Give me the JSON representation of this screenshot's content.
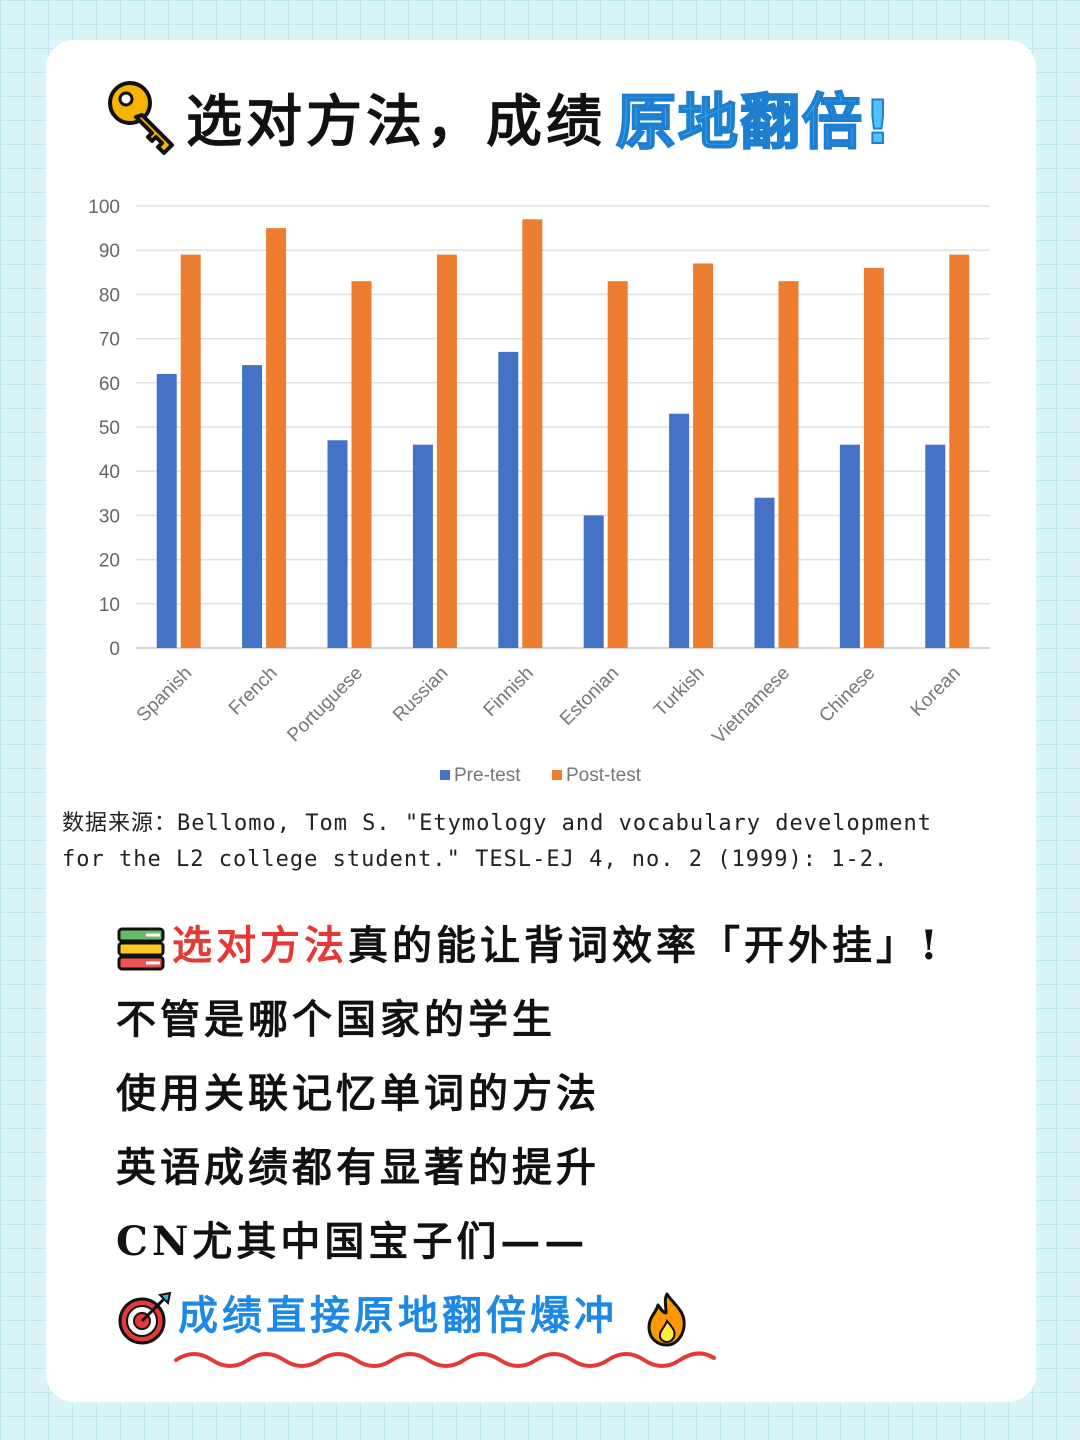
{
  "headline": {
    "text": "选对方法，成绩",
    "highlight": "原地翻倍!",
    "icon": "key-icon"
  },
  "chart_data": {
    "type": "bar",
    "categories": [
      "Spanish",
      "French",
      "Portuguese",
      "Russian",
      "Finnish",
      "Estonian",
      "Turkish",
      "Vietnamese",
      "Chinese",
      "Korean"
    ],
    "series": [
      {
        "name": "Pre-test",
        "color": "#4472c4",
        "values": [
          62,
          64,
          47,
          46,
          67,
          30,
          53,
          34,
          46,
          46
        ]
      },
      {
        "name": "Post-test",
        "color": "#ed7d31",
        "values": [
          89,
          95,
          83,
          89,
          97,
          83,
          87,
          83,
          86,
          89
        ]
      }
    ],
    "ylim": [
      0,
      100
    ],
    "yticks": [
      0,
      10,
      20,
      30,
      40,
      50,
      60,
      70,
      80,
      90,
      100
    ],
    "grid": true,
    "legend": "bottom"
  },
  "source": {
    "line1": "数据来源：Bellomo, Tom S. \"Etymology and vocabulary development",
    "line2": "for the L2 college student.\" TESL-EJ 4, no. 2 (1999): 1-2."
  },
  "body": {
    "line1_red": "选对方法",
    "line1_mid": "真的能让背词效率",
    "line1_hl": "「开外挂」",
    "line1_end": "!",
    "line2": "不管是哪个国家的学生",
    "line3": "使用关联记忆单词的方法",
    "line4": "英语成绩都有显著的提升",
    "line5_a": "CN尤其",
    "line5_hl": "中国",
    "line5_b": "宝子们——",
    "line6": "成绩直接原地翻倍爆冲",
    "icons": [
      "books-icon",
      "target-icon",
      "fire-icon"
    ]
  }
}
